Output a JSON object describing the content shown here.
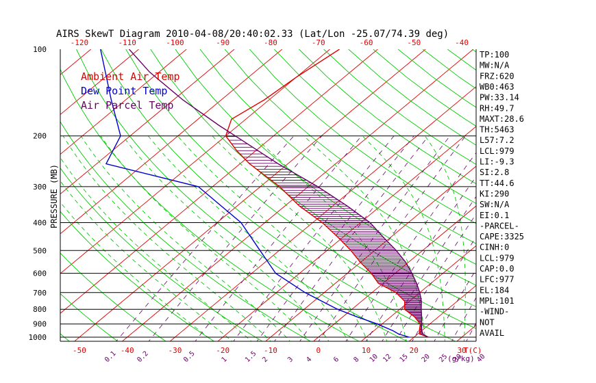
{
  "chart_data": {
    "type": "line",
    "title": "AIRS SkewT Diagram 2010-04-08/20:40:02.33 (Lat/Lon -25.07/74.39 deg)",
    "ylabel": "PRESSURE (MB)",
    "xlabel": "T(C)",
    "mixing_ratio_unit": "(g/kg)",
    "y_scale": "log",
    "ylim": [
      1050,
      100
    ],
    "xlim_bottom": [
      -54,
      33
    ],
    "pressure_ticks": [
      100,
      200,
      300,
      400,
      500,
      600,
      700,
      800,
      900,
      1000
    ],
    "pressure_gridlines": [
      200,
      300,
      400,
      500,
      600,
      700,
      800,
      900,
      1000
    ],
    "temp_ticks_bottom": [
      -50,
      -40,
      -30,
      -20,
      -10,
      0,
      10,
      20,
      30
    ],
    "temp_ticks_top": [
      -120,
      -110,
      -100,
      -90,
      -80,
      -70,
      -60,
      -50,
      -40
    ],
    "mixing_ratio_ticks": [
      "0.1",
      "0.2",
      "0.5",
      "1",
      "1.5",
      "2",
      "3",
      "4",
      "6",
      "8",
      "10",
      "12",
      "15",
      "20",
      "25",
      "30",
      "40"
    ],
    "legend": [
      {
        "label": "Ambient Air Temp",
        "color": "#e00000"
      },
      {
        "label": "Dew Point Temp",
        "color": "#0000cc"
      },
      {
        "label": "Air Parcel Temp",
        "color": "#660066"
      }
    ],
    "series": [
      {
        "name": "Ambient Air Temp",
        "color": "#e00000",
        "points": [
          [
            1000,
            23
          ],
          [
            975,
            20.4
          ],
          [
            950,
            19.5
          ],
          [
            900,
            18
          ],
          [
            850,
            15
          ],
          [
            800,
            11
          ],
          [
            750,
            9
          ],
          [
            700,
            5
          ],
          [
            650,
            -1
          ],
          [
            600,
            -5
          ],
          [
            550,
            -10
          ],
          [
            500,
            -15
          ],
          [
            450,
            -21
          ],
          [
            400,
            -28
          ],
          [
            350,
            -37
          ],
          [
            300,
            -46
          ],
          [
            250,
            -58
          ],
          [
            225,
            -64
          ],
          [
            200,
            -70
          ],
          [
            175,
            -73
          ],
          [
            150,
            -71
          ],
          [
            125,
            -70
          ],
          [
            100,
            -68
          ]
        ]
      },
      {
        "name": "Dew Point Temp",
        "color": "#0000cc",
        "points": [
          [
            1000,
            19
          ],
          [
            975,
            16
          ],
          [
            950,
            14
          ],
          [
            900,
            9
          ],
          [
            850,
            3
          ],
          [
            800,
            -3
          ],
          [
            700,
            -14
          ],
          [
            600,
            -25
          ],
          [
            500,
            -34
          ],
          [
            400,
            -45
          ],
          [
            300,
            -63
          ],
          [
            250,
            -88
          ],
          [
            200,
            -92
          ],
          [
            150,
            -103
          ],
          [
            100,
            -118
          ]
        ]
      },
      {
        "name": "Air Parcel Temp",
        "color": "#660066",
        "points": [
          [
            1000,
            23
          ],
          [
            979,
            21.3
          ],
          [
            950,
            20
          ],
          [
            900,
            18.3
          ],
          [
            850,
            16.5
          ],
          [
            800,
            14.5
          ],
          [
            750,
            12.5
          ],
          [
            700,
            10
          ],
          [
            650,
            7
          ],
          [
            600,
            3.5
          ],
          [
            550,
            -0.5
          ],
          [
            500,
            -5.5
          ],
          [
            450,
            -11.5
          ],
          [
            400,
            -18
          ],
          [
            350,
            -27
          ],
          [
            300,
            -38
          ],
          [
            250,
            -52
          ],
          [
            200,
            -68
          ],
          [
            184,
            -74
          ],
          [
            150,
            -88
          ],
          [
            120,
            -102
          ],
          [
            100,
            -112
          ]
        ]
      }
    ]
  },
  "indices": [
    "TP:100",
    "MW:N/A",
    "FRZ:620",
    "WB0:463",
    "PW:33.14",
    "RH:49.7",
    "MAXT:28.6",
    "TH:5463",
    "L57:7.2",
    "LCL:979",
    "LI:-9.3",
    "SI:2.8",
    "TT:44.6",
    "KI:290",
    "SW:N/A",
    "EI:0.1",
    "-PARCEL-",
    "CAPE:3325",
    "CINH:0",
    "LCL:979",
    "CAP:0.0",
    "LFC:977",
    "EL:184",
    "MPL:101",
    "-WIND-",
    "NOT",
    "AVAIL"
  ],
  "colors": {
    "isotherm": "#e00000",
    "dry_adiabat": "#00cc00",
    "moist_adiabat": "#00cc00",
    "mixing_ratio": "#660066",
    "pressure_grid": "#000000",
    "top_tick_labels": "#e00000",
    "bottom_tick_labels": "#e00000",
    "mixing_ratio_labels": "#660066",
    "hatch": "#660066"
  }
}
